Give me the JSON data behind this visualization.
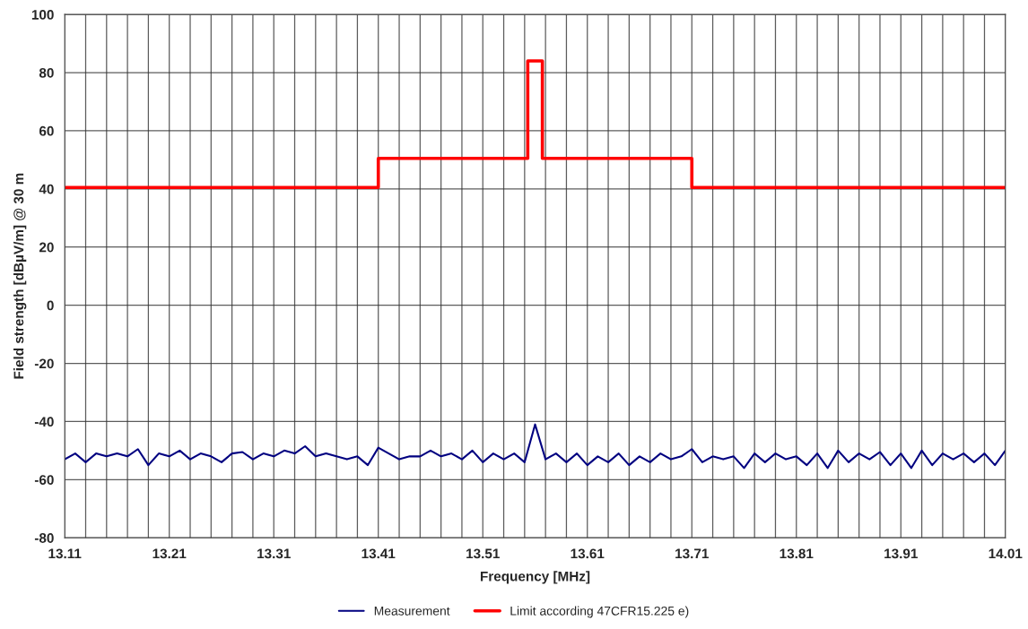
{
  "chart_data": {
    "type": "line",
    "xlabel": "Frequency [MHz]",
    "ylabel": "Field strength [dBµV/m] @ 30 m",
    "series": [
      {
        "name": "Measurement",
        "color": "#000080",
        "x": [
          13.11,
          13.12,
          13.13,
          13.14,
          13.15,
          13.16,
          13.17,
          13.18,
          13.19,
          13.2,
          13.21,
          13.22,
          13.23,
          13.24,
          13.25,
          13.26,
          13.27,
          13.28,
          13.29,
          13.3,
          13.31,
          13.32,
          13.33,
          13.34,
          13.35,
          13.36,
          13.37,
          13.38,
          13.39,
          13.4,
          13.41,
          13.42,
          13.43,
          13.44,
          13.45,
          13.46,
          13.47,
          13.48,
          13.49,
          13.5,
          13.51,
          13.52,
          13.53,
          13.54,
          13.55,
          13.56,
          13.57,
          13.58,
          13.59,
          13.6,
          13.61,
          13.62,
          13.63,
          13.64,
          13.65,
          13.66,
          13.67,
          13.68,
          13.69,
          13.7,
          13.71,
          13.72,
          13.73,
          13.74,
          13.75,
          13.76,
          13.77,
          13.78,
          13.79,
          13.8,
          13.81,
          13.82,
          13.83,
          13.84,
          13.85,
          13.86,
          13.87,
          13.88,
          13.89,
          13.9,
          13.91,
          13.92,
          13.93,
          13.94,
          13.95,
          13.96,
          13.97,
          13.98,
          13.99,
          14.0,
          14.01
        ],
        "values": [
          -53,
          -51,
          -54,
          -51,
          -52,
          -51,
          -52,
          -49.5,
          -55,
          -51,
          -52,
          -50,
          -53,
          -51,
          -52,
          -54,
          -51,
          -50.5,
          -53,
          -51,
          -52,
          -50,
          -51,
          -48.5,
          -52,
          -51,
          -52,
          -53,
          -52,
          -55,
          -49,
          -51,
          -53,
          -52,
          -52,
          -50,
          -52,
          -51,
          -53,
          -50,
          -54,
          -51,
          -53,
          -51,
          -54,
          -41,
          -53,
          -51,
          -54,
          -51,
          -55,
          -52,
          -54,
          -51,
          -55,
          -52,
          -54,
          -51,
          -53,
          -52,
          -49.5,
          -54,
          -52,
          -53,
          -52,
          -56,
          -51,
          -54,
          -51,
          -53,
          -52,
          -55,
          -51,
          -56,
          -50,
          -54,
          -51,
          -53,
          -50.5,
          -55,
          -51,
          -56,
          -50,
          -55,
          -51,
          -53,
          -51,
          -54,
          -51,
          -55,
          -50
        ]
      },
      {
        "name": "Limit according 47CFR15.225 e)",
        "type": "step",
        "color": "#ff0000",
        "x": [
          13.11,
          13.41,
          13.553,
          13.567,
          13.71,
          14.01
        ],
        "values": [
          40.5,
          50.5,
          84,
          50.5,
          40.5,
          40.5
        ]
      }
    ],
    "xlim": [
      13.11,
      14.01
    ],
    "xticks": [
      13.11,
      {
        "value": 13.13,
        "label": null
      },
      {
        "value": 13.15,
        "label": null
      },
      {
        "value": 13.17,
        "label": null
      },
      {
        "value": 13.19,
        "label": null
      },
      13.21,
      {
        "value": 13.23,
        "label": null
      },
      {
        "value": 13.25,
        "label": null
      },
      {
        "value": 13.27,
        "label": null
      },
      {
        "value": 13.29,
        "label": null
      },
      13.31,
      {
        "value": 13.33,
        "label": null
      },
      {
        "value": 13.35,
        "label": null
      },
      {
        "value": 13.37,
        "label": null
      },
      {
        "value": 13.39,
        "label": null
      },
      13.41,
      {
        "value": 13.43,
        "label": null
      },
      {
        "value": 13.45,
        "label": null
      },
      {
        "value": 13.47,
        "label": null
      },
      {
        "value": 13.49,
        "label": null
      },
      13.51,
      {
        "value": 13.53,
        "label": null
      },
      {
        "value": 13.55,
        "label": null
      },
      {
        "value": 13.57,
        "label": null
      },
      {
        "value": 13.59,
        "label": null
      },
      13.61,
      {
        "value": 13.63,
        "label": null
      },
      {
        "value": 13.65,
        "label": null
      },
      {
        "value": 13.67,
        "label": null
      },
      {
        "value": 13.69,
        "label": null
      },
      13.71,
      {
        "value": 13.73,
        "label": null
      },
      {
        "value": 13.75,
        "label": null
      },
      {
        "value": 13.77,
        "label": null
      },
      {
        "value": 13.79,
        "label": null
      },
      13.81,
      {
        "value": 13.83,
        "label": null
      },
      {
        "value": 13.85,
        "label": null
      },
      {
        "value": 13.87,
        "label": null
      },
      {
        "value": 13.89,
        "label": null
      },
      13.91,
      {
        "value": 13.93,
        "label": null
      },
      {
        "value": 13.95,
        "label": null
      },
      {
        "value": 13.97,
        "label": null
      },
      {
        "value": 13.99,
        "label": null
      },
      14.01
    ],
    "ylim": [
      -80,
      100
    ],
    "yticks": [
      -80,
      -60,
      -40,
      -20,
      0,
      20,
      40,
      60,
      80,
      100
    ],
    "grid": true,
    "legend": "bottom",
    "marker": "none",
    "line_style": "solid"
  }
}
